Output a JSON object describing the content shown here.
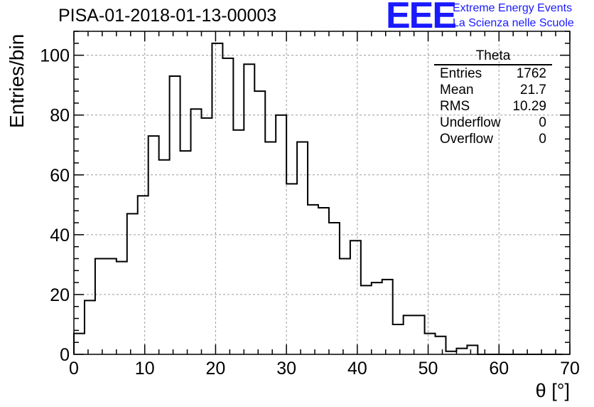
{
  "title": "PISA-01-2018-01-13-00003",
  "logo": {
    "mark": "EEE",
    "line1": "Extreme Energy Events",
    "line2": "La Scienza nelle Scuole"
  },
  "stats_box": {
    "title": "Theta",
    "rows": [
      {
        "label": "Entries",
        "value": "1762"
      },
      {
        "label": "Mean",
        "value": "21.7"
      },
      {
        "label": "RMS",
        "value": "10.29"
      },
      {
        "label": "Underflow",
        "value": "0"
      },
      {
        "label": "Overflow",
        "value": "0"
      }
    ]
  },
  "colors": {
    "line": "#000000",
    "grid": "#9a9a9a",
    "logo": "#1a1aff"
  },
  "chart_data": {
    "type": "bar",
    "style": "step-histogram",
    "xlabel": "θ [°]",
    "ylabel": "Entries/bin",
    "xlim": [
      0,
      70
    ],
    "ylim": [
      0,
      108
    ],
    "grid": true,
    "x_ticks": [
      0,
      10,
      20,
      30,
      40,
      50,
      60,
      70
    ],
    "y_ticks": [
      0,
      20,
      40,
      60,
      80,
      100
    ],
    "bin_width": 1.5,
    "bin_edges_start": 0,
    "values": [
      7,
      18,
      32,
      32,
      31,
      47,
      53,
      73,
      65,
      93,
      68,
      82,
      79,
      104,
      99,
      75,
      97,
      88,
      71,
      80,
      57,
      71,
      50,
      49,
      44,
      32,
      38,
      23,
      24,
      25,
      10,
      13,
      13,
      7,
      6,
      1,
      2,
      3,
      0,
      0,
      0,
      0,
      0,
      0,
      0,
      0
    ]
  }
}
